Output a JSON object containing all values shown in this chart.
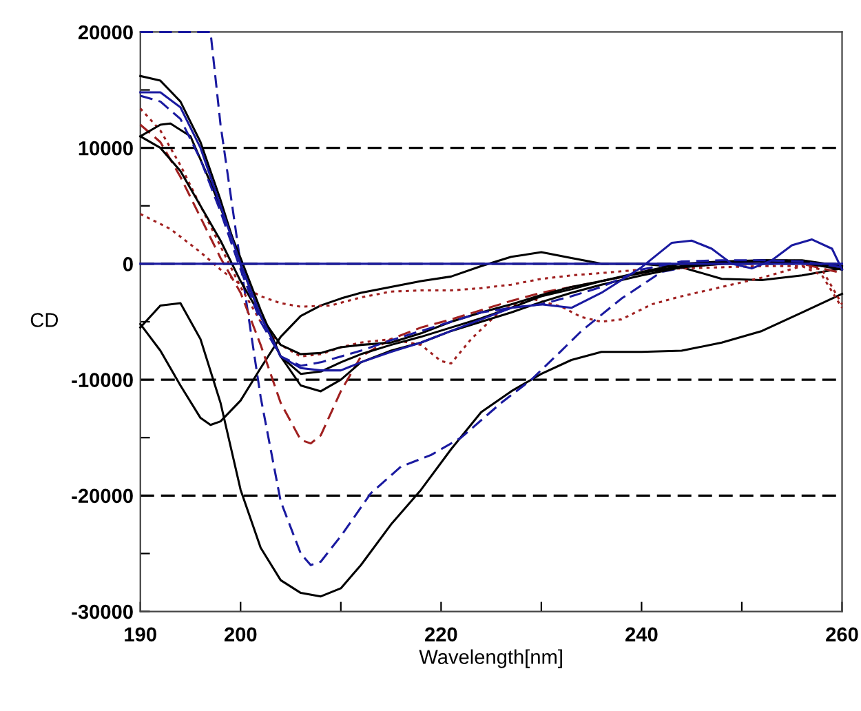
{
  "chart_data": {
    "type": "line",
    "xlabel": "Wavelength[nm]",
    "ylabel": "CD",
    "xlim": [
      190,
      260
    ],
    "xticks": [
      190,
      200,
      {
        "value": 210,
        "label": null
      },
      220,
      {
        "value": 230,
        "label": null
      },
      240,
      {
        "value": 250,
        "label": null
      },
      260
    ],
    "ylim": [
      -30000,
      20000
    ],
    "yticks": [
      -30000,
      {
        "value": -25000,
        "label": null
      },
      -20000,
      {
        "value": -15000,
        "label": null
      },
      -10000,
      {
        "value": -5000,
        "label": null
      },
      0,
      {
        "value": 5000,
        "label": null
      },
      10000,
      {
        "value": 15000,
        "label": null
      },
      20000
    ],
    "grid": false,
    "marker": "none",
    "ref_lines": [
      {
        "axis": "y",
        "value": 10000,
        "label": null,
        "color": "#000000",
        "line_style": "dashed"
      },
      {
        "axis": "y",
        "value": 0,
        "label": null,
        "color": "#000000",
        "line_style": "dashed"
      },
      {
        "axis": "y",
        "value": -10000,
        "label": null,
        "color": "#000000",
        "line_style": "dashed"
      },
      {
        "axis": "y",
        "value": -20000,
        "label": null,
        "color": "#000000",
        "line_style": "dashed"
      }
    ],
    "series": [
      {
        "color": "#000000",
        "line_style": "solid",
        "x": [
          190,
          192,
          194,
          196,
          198,
          200,
          202,
          204,
          206,
          208,
          210,
          212,
          215,
          218,
          221,
          224,
          227,
          230,
          233,
          236,
          240,
          244,
          248,
          252,
          256,
          260
        ],
        "values": [
          -5500,
          -3600,
          -3400,
          -6500,
          -12000,
          -19500,
          -24500,
          -27300,
          -28400,
          -28700,
          -28000,
          -26000,
          -22500,
          -19500,
          -16000,
          -12800,
          -11000,
          -9500,
          -8300,
          -7600,
          -7600,
          -7500,
          -6800,
          -5800,
          -4200,
          -2600
        ]
      },
      {
        "color": "#1a1aa0",
        "line_style": "dashed",
        "x": [
          190,
          194,
          197,
          198,
          200,
          202,
          204,
          206,
          207,
          208,
          210,
          213,
          216,
          219,
          222,
          226,
          229,
          232,
          234,
          238,
          242,
          245,
          250,
          255,
          260
        ],
        "values": [
          20000,
          20000,
          20000,
          12000,
          0,
          -11500,
          -20500,
          -25000,
          -26000,
          -25700,
          -23500,
          -19800,
          -17500,
          -16500,
          -15000,
          -12000,
          -10000,
          -7500,
          -5800,
          -3000,
          -700,
          -200,
          200,
          300,
          -500
        ]
      },
      {
        "color": "#000000",
        "line_style": "solid",
        "x": [
          190,
          192,
          194,
          196,
          197,
          198,
          200,
          202,
          204,
          206,
          208,
          210,
          212,
          215,
          218,
          221,
          224,
          227,
          230,
          233,
          236,
          240,
          244,
          248,
          252,
          256,
          260
        ],
        "values": [
          -5200,
          -7500,
          -10500,
          -13300,
          -13900,
          -13600,
          -11800,
          -9000,
          -6300,
          -4500,
          -3600,
          -3000,
          -2500,
          -2000,
          -1500,
          -1100,
          -200,
          600,
          1000,
          500,
          0,
          0,
          -300,
          -1300,
          -1400,
          -1000,
          -400
        ]
      },
      {
        "color": "#a02020",
        "line_style": "dashed",
        "x": [
          190,
          192,
          194,
          196,
          198,
          200,
          202,
          204,
          206,
          207,
          208,
          210,
          212,
          215,
          218,
          221,
          224,
          227,
          230,
          233,
          236,
          240,
          244,
          248,
          252,
          256,
          260
        ],
        "values": [
          12000,
          10500,
          7500,
          4000,
          500,
          -2500,
          -7000,
          -12000,
          -15200,
          -15500,
          -14800,
          -11000,
          -8000,
          -6500,
          -5500,
          -4800,
          -4000,
          -3200,
          -2500,
          -2000,
          -1500,
          -800,
          -300,
          0,
          200,
          0,
          -800
        ]
      },
      {
        "color": "#a02020",
        "line_style": "dotted",
        "x": [
          190,
          192,
          194,
          196,
          198,
          200,
          202,
          204,
          206,
          208,
          210,
          212,
          215,
          218,
          220,
          221,
          223,
          226,
          229,
          232,
          234,
          236,
          238,
          241,
          244,
          248,
          252,
          256,
          258,
          260
        ],
        "values": [
          13400,
          11500,
          8500,
          5000,
          1500,
          -2000,
          -5000,
          -7000,
          -8000,
          -7800,
          -7200,
          -6800,
          -6500,
          -7000,
          -8400,
          -8600,
          -6500,
          -4000,
          -3000,
          -3700,
          -4600,
          -5000,
          -4800,
          -3500,
          -2800,
          -2000,
          -1200,
          -200,
          -500,
          -3500
        ]
      },
      {
        "color": "#a02020",
        "line_style": "dotted",
        "x": [
          190,
          193,
          196,
          198,
          200,
          202,
          204,
          206,
          209,
          212,
          215,
          218,
          221,
          224,
          227,
          230,
          233,
          236,
          240,
          244,
          248,
          252,
          256,
          258,
          260
        ],
        "values": [
          4300,
          3000,
          1000,
          -500,
          -1800,
          -2800,
          -3400,
          -3700,
          -3600,
          -2900,
          -2400,
          -2300,
          -2300,
          -2100,
          -1800,
          -1300,
          -1000,
          -800,
          -500,
          -400,
          -300,
          -200,
          -200,
          -1000,
          -3800
        ]
      },
      {
        "color": "#000000",
        "line_style": "solid",
        "x": [
          190,
          192,
          194,
          196,
          198,
          200,
          202,
          204,
          206,
          208,
          210,
          212,
          215,
          218,
          221,
          224,
          227,
          230,
          233,
          236,
          240,
          244,
          248,
          252,
          256,
          260
        ],
        "values": [
          16200,
          15800,
          14000,
          10500,
          5500,
          0,
          -4500,
          -8000,
          -9500,
          -9300,
          -8500,
          -7800,
          -7000,
          -6300,
          -5500,
          -4700,
          -3800,
          -2800,
          -2200,
          -1500,
          -700,
          0,
          200,
          300,
          200,
          -300
        ]
      },
      {
        "color": "#000000",
        "line_style": "solid",
        "x": [
          190,
          192,
          193,
          195,
          197,
          200,
          202,
          204,
          206,
          208,
          210,
          212,
          215,
          218,
          221,
          224,
          227,
          230,
          233,
          236,
          240,
          244,
          248,
          252,
          256,
          260
        ],
        "values": [
          11000,
          12000,
          12100,
          11000,
          7000,
          500,
          -4000,
          -8000,
          -10500,
          -11000,
          -10000,
          -8500,
          -7500,
          -6800,
          -5800,
          -5000,
          -4200,
          -3300,
          -2500,
          -1800,
          -1000,
          -300,
          0,
          300,
          300,
          -200
        ]
      },
      {
        "color": "#000000",
        "line_style": "solid",
        "x": [
          190,
          192,
          194,
          196,
          198,
          200,
          202,
          204,
          206,
          208,
          210,
          212,
          215,
          218,
          221,
          224,
          227,
          230,
          233,
          236,
          240,
          244,
          248,
          252,
          256,
          260
        ],
        "values": [
          11000,
          10000,
          8000,
          5000,
          2000,
          -1500,
          -4500,
          -7000,
          -7800,
          -7700,
          -7200,
          -7000,
          -6800,
          -6000,
          -5000,
          -4200,
          -3500,
          -2700,
          -2000,
          -1500,
          -800,
          -200,
          200,
          200,
          100,
          -500
        ]
      },
      {
        "color": "#1a1aa0",
        "line_style": "solid",
        "x": [
          190,
          192,
          194,
          196,
          198,
          200,
          202,
          204,
          206,
          208,
          210,
          212,
          215,
          218,
          221,
          224,
          227,
          230,
          233,
          236,
          240,
          243,
          245,
          247,
          249,
          251,
          253,
          255,
          257,
          259,
          260
        ],
        "values": [
          14800,
          14800,
          13500,
          10000,
          5000,
          0,
          -4500,
          -8000,
          -9000,
          -9200,
          -9200,
          -8500,
          -7600,
          -6800,
          -5800,
          -4800,
          -3800,
          -3500,
          -3800,
          -2500,
          -300,
          1800,
          2000,
          1300,
          0,
          -400,
          300,
          1600,
          2100,
          1300,
          -500
        ]
      },
      {
        "color": "#1a1aa0",
        "line_style": "dashed",
        "x": [
          190,
          192,
          194,
          196,
          198,
          200,
          202,
          204,
          206,
          208,
          210,
          212,
          215,
          218,
          221,
          224,
          227,
          230,
          233,
          236,
          240,
          244,
          248,
          252,
          256,
          260
        ],
        "values": [
          14500,
          14000,
          12500,
          9000,
          4500,
          -500,
          -5000,
          -8000,
          -8800,
          -8500,
          -8000,
          -7500,
          -6600,
          -5800,
          -5000,
          -4200,
          -3800,
          -3500,
          -2800,
          -2000,
          -500,
          200,
          300,
          300,
          200,
          -300
        ]
      },
      {
        "color": "#1a1aa0",
        "line_style": "solid",
        "x": [
          190,
          260
        ],
        "values": [
          0,
          0
        ]
      }
    ]
  }
}
